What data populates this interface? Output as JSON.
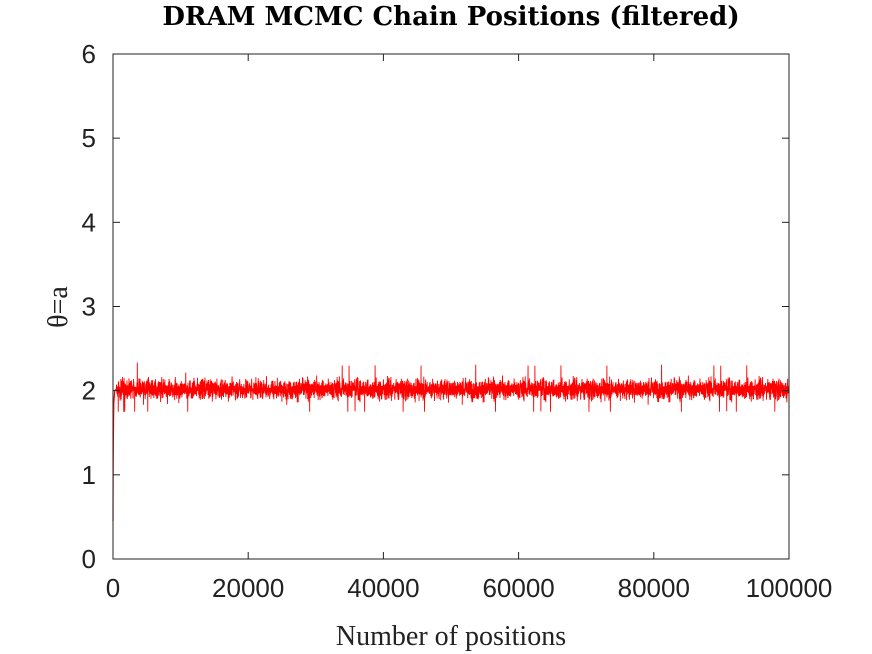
{
  "chart_data": {
    "type": "line",
    "title": "DRAM MCMC Chain Positions (filtered)",
    "xlabel": "Number of positions",
    "ylabel": "θ=a",
    "xlim": [
      0,
      100000
    ],
    "ylim": [
      0,
      6
    ],
    "x_ticks": [
      "0",
      "20000",
      "40000",
      "60000",
      "80000",
      "100000"
    ],
    "y_ticks": [
      "0",
      "1",
      "2",
      "3",
      "4",
      "5",
      "6"
    ],
    "grid": false,
    "legend": "none",
    "series": [
      {
        "color": "#ff0000",
        "burn_in": {
          "x": [
            0,
            20,
            60,
            120,
            250,
            500
          ],
          "y": [
            0.45,
            1.0,
            1.5,
            1.85,
            2.0,
            2.02
          ]
        },
        "stationary": {
          "x_start": 500,
          "x_end": 100000,
          "mean": 2.02,
          "typical_min": 1.82,
          "typical_max": 2.22,
          "extreme_min": 1.75,
          "extreme_max": 2.35
        }
      }
    ]
  }
}
